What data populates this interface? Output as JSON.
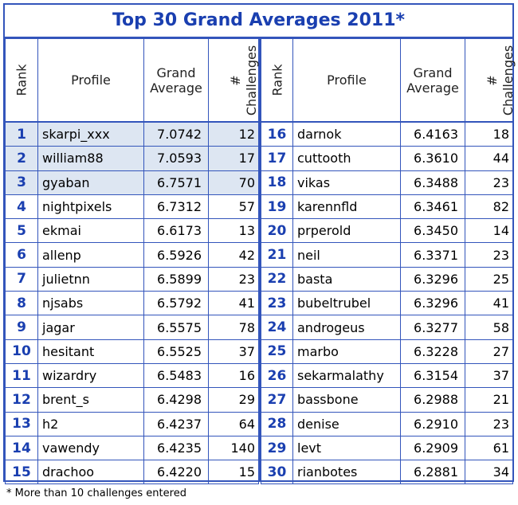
{
  "title": "Top 30 Grand Averages 2011*",
  "footnote": "* More than 10 challenges entered",
  "headers": {
    "rank": "Rank",
    "profile": "Profile",
    "grand_line1": "Grand",
    "grand_line2": "Average",
    "ch_line1": "#",
    "ch_line2": "Challenges"
  },
  "left_rows": [
    {
      "rank": "1",
      "profile": "skarpi_xxx",
      "avg": "7.0742",
      "ch": "12"
    },
    {
      "rank": "2",
      "profile": "william88",
      "avg": "7.0593",
      "ch": "17"
    },
    {
      "rank": "3",
      "profile": "gyaban",
      "avg": "6.7571",
      "ch": "70"
    },
    {
      "rank": "4",
      "profile": "nightpixels",
      "avg": "6.7312",
      "ch": "57"
    },
    {
      "rank": "5",
      "profile": "ekmai",
      "avg": "6.6173",
      "ch": "13"
    },
    {
      "rank": "6",
      "profile": "allenp",
      "avg": "6.5926",
      "ch": "42"
    },
    {
      "rank": "7",
      "profile": "julietnn",
      "avg": "6.5899",
      "ch": "23"
    },
    {
      "rank": "8",
      "profile": "njsabs",
      "avg": "6.5792",
      "ch": "41"
    },
    {
      "rank": "9",
      "profile": "jagar",
      "avg": "6.5575",
      "ch": "78"
    },
    {
      "rank": "10",
      "profile": "hesitant",
      "avg": "6.5525",
      "ch": "37"
    },
    {
      "rank": "11",
      "profile": "wizardry",
      "avg": "6.5483",
      "ch": "16"
    },
    {
      "rank": "12",
      "profile": "brent_s",
      "avg": "6.4298",
      "ch": "29"
    },
    {
      "rank": "13",
      "profile": "h2",
      "avg": "6.4237",
      "ch": "64"
    },
    {
      "rank": "14",
      "profile": "vawendy",
      "avg": "6.4235",
      "ch": "140"
    },
    {
      "rank": "15",
      "profile": "drachoo",
      "avg": "6.4220",
      "ch": "15"
    }
  ],
  "right_rows": [
    {
      "rank": "16",
      "profile": "darnok",
      "avg": "6.4163",
      "ch": "18"
    },
    {
      "rank": "17",
      "profile": "cuttooth",
      "avg": "6.3610",
      "ch": "44"
    },
    {
      "rank": "18",
      "profile": "vikas",
      "avg": "6.3488",
      "ch": "23"
    },
    {
      "rank": "19",
      "profile": "karennfld",
      "avg": "6.3461",
      "ch": "82"
    },
    {
      "rank": "20",
      "profile": "prperold",
      "avg": "6.3450",
      "ch": "14"
    },
    {
      "rank": "21",
      "profile": "neil",
      "avg": "6.3371",
      "ch": "23"
    },
    {
      "rank": "22",
      "profile": "basta",
      "avg": "6.3296",
      "ch": "25"
    },
    {
      "rank": "23",
      "profile": "bubeltrubel",
      "avg": "6.3296",
      "ch": "41"
    },
    {
      "rank": "24",
      "profile": "androgeus",
      "avg": "6.3277",
      "ch": "58"
    },
    {
      "rank": "25",
      "profile": "marbo",
      "avg": "6.3228",
      "ch": "27"
    },
    {
      "rank": "26",
      "profile": "sekarmalathy",
      "avg": "6.3154",
      "ch": "37"
    },
    {
      "rank": "27",
      "profile": "bassbone",
      "avg": "6.2988",
      "ch": "21"
    },
    {
      "rank": "28",
      "profile": "denise",
      "avg": "6.2910",
      "ch": "23"
    },
    {
      "rank": "29",
      "profile": "levt",
      "avg": "6.2909",
      "ch": "61"
    },
    {
      "rank": "30",
      "profile": "rianbotes",
      "avg": "6.2881",
      "ch": "34"
    }
  ]
}
